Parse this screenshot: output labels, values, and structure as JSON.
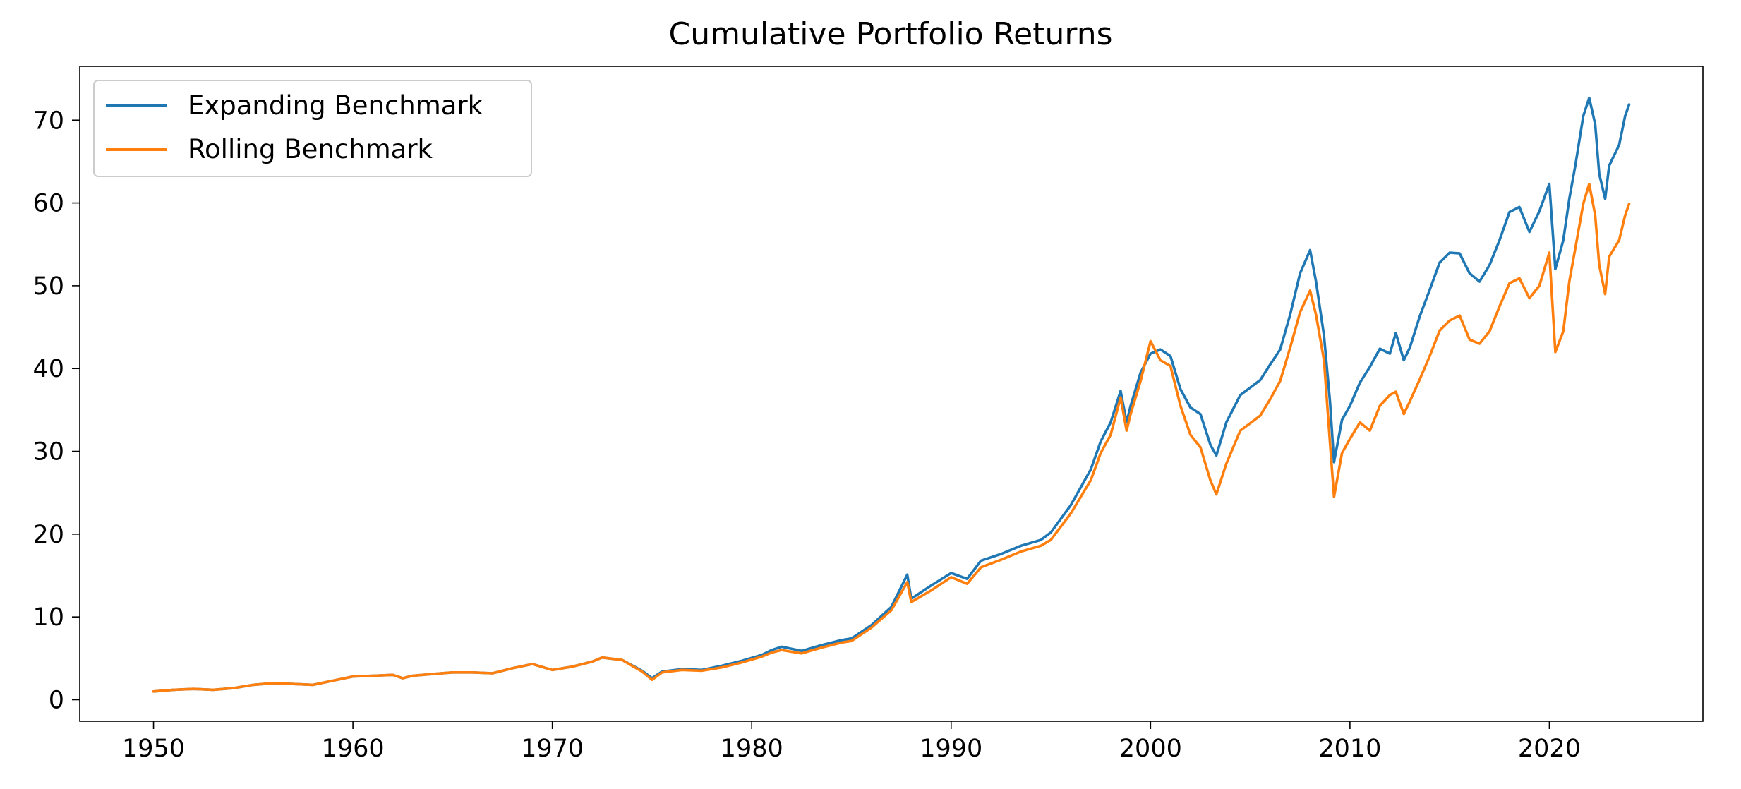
{
  "chart_data": {
    "type": "line",
    "title": "Cumulative Portfolio Returns",
    "xlabel": "",
    "ylabel": "",
    "xlim": [
      1946.3,
      2027.7
    ],
    "ylim": [
      -2.6,
      76.5
    ],
    "x_ticks": [
      1950,
      1960,
      1970,
      1980,
      1990,
      2000,
      2010,
      2020
    ],
    "y_ticks": [
      0,
      10,
      20,
      30,
      40,
      50,
      60,
      70
    ],
    "grid": false,
    "legend_position": "upper-left",
    "series": [
      {
        "name": "Expanding Benchmark",
        "color": "#1f77b4",
        "points": [
          [
            1950.0,
            1.0
          ],
          [
            1951.0,
            1.2
          ],
          [
            1952.0,
            1.3
          ],
          [
            1953.0,
            1.2
          ],
          [
            1954.0,
            1.4
          ],
          [
            1955.0,
            1.8
          ],
          [
            1956.0,
            2.0
          ],
          [
            1957.0,
            1.9
          ],
          [
            1958.0,
            1.8
          ],
          [
            1959.0,
            2.3
          ],
          [
            1960.0,
            2.8
          ],
          [
            1961.0,
            2.9
          ],
          [
            1962.0,
            3.0
          ],
          [
            1962.5,
            2.6
          ],
          [
            1963.0,
            2.9
          ],
          [
            1964.0,
            3.1
          ],
          [
            1965.0,
            3.3
          ],
          [
            1966.0,
            3.3
          ],
          [
            1967.0,
            3.2
          ],
          [
            1968.0,
            3.8
          ],
          [
            1969.0,
            4.3
          ],
          [
            1970.0,
            3.6
          ],
          [
            1971.0,
            4.0
          ],
          [
            1972.0,
            4.6
          ],
          [
            1972.5,
            5.1
          ],
          [
            1973.5,
            4.8
          ],
          [
            1974.5,
            3.5
          ],
          [
            1975.0,
            2.6
          ],
          [
            1975.5,
            3.4
          ],
          [
            1976.5,
            3.7
          ],
          [
            1977.5,
            3.6
          ],
          [
            1978.5,
            4.1
          ],
          [
            1979.5,
            4.7
          ],
          [
            1980.5,
            5.4
          ],
          [
            1981.0,
            6.0
          ],
          [
            1981.5,
            6.4
          ],
          [
            1982.5,
            5.9
          ],
          [
            1983.5,
            6.6
          ],
          [
            1984.5,
            7.2
          ],
          [
            1985.0,
            7.4
          ],
          [
            1986.0,
            9.0
          ],
          [
            1987.0,
            11.2
          ],
          [
            1987.8,
            15.1
          ],
          [
            1988.0,
            12.2
          ],
          [
            1989.0,
            13.8
          ],
          [
            1990.0,
            15.3
          ],
          [
            1990.8,
            14.6
          ],
          [
            1991.5,
            16.8
          ],
          [
            1992.5,
            17.6
          ],
          [
            1993.5,
            18.6
          ],
          [
            1994.5,
            19.3
          ],
          [
            1995.0,
            20.2
          ],
          [
            1996.0,
            23.5
          ],
          [
            1997.0,
            27.8
          ],
          [
            1997.5,
            31.2
          ],
          [
            1998.0,
            33.5
          ],
          [
            1998.5,
            37.3
          ],
          [
            1998.8,
            33.5
          ],
          [
            1999.0,
            35.5
          ],
          [
            1999.5,
            39.5
          ],
          [
            2000.0,
            41.8
          ],
          [
            2000.5,
            42.3
          ],
          [
            2001.0,
            41.5
          ],
          [
            2001.5,
            37.5
          ],
          [
            2002.0,
            35.3
          ],
          [
            2002.5,
            34.5
          ],
          [
            2003.0,
            30.8
          ],
          [
            2003.3,
            29.5
          ],
          [
            2003.8,
            33.5
          ],
          [
            2004.5,
            36.8
          ],
          [
            2005.5,
            38.6
          ],
          [
            2006.0,
            40.5
          ],
          [
            2006.5,
            42.3
          ],
          [
            2007.0,
            46.5
          ],
          [
            2007.5,
            51.5
          ],
          [
            2008.0,
            54.3
          ],
          [
            2008.3,
            50.5
          ],
          [
            2008.7,
            44.0
          ],
          [
            2009.0,
            36.0
          ],
          [
            2009.2,
            28.7
          ],
          [
            2009.6,
            33.8
          ],
          [
            2010.0,
            35.5
          ],
          [
            2010.5,
            38.3
          ],
          [
            2011.0,
            40.2
          ],
          [
            2011.5,
            42.4
          ],
          [
            2012.0,
            41.8
          ],
          [
            2012.3,
            44.3
          ],
          [
            2012.7,
            41.0
          ],
          [
            2013.0,
            42.5
          ],
          [
            2013.5,
            46.3
          ],
          [
            2014.0,
            49.5
          ],
          [
            2014.5,
            52.8
          ],
          [
            2015.0,
            54.0
          ],
          [
            2015.5,
            53.9
          ],
          [
            2016.0,
            51.5
          ],
          [
            2016.5,
            50.5
          ],
          [
            2017.0,
            52.5
          ],
          [
            2017.5,
            55.5
          ],
          [
            2018.0,
            58.9
          ],
          [
            2018.5,
            59.5
          ],
          [
            2019.0,
            56.5
          ],
          [
            2019.5,
            59.0
          ],
          [
            2020.0,
            62.3
          ],
          [
            2020.3,
            52.0
          ],
          [
            2020.7,
            55.5
          ],
          [
            2021.0,
            60.5
          ],
          [
            2021.3,
            64.5
          ],
          [
            2021.7,
            70.5
          ],
          [
            2022.0,
            72.7
          ],
          [
            2022.3,
            69.5
          ],
          [
            2022.5,
            63.5
          ],
          [
            2022.8,
            60.5
          ],
          [
            2023.0,
            64.5
          ],
          [
            2023.5,
            67.0
          ],
          [
            2023.8,
            70.5
          ],
          [
            2024.0,
            71.9
          ]
        ]
      },
      {
        "name": "Rolling Benchmark",
        "color": "#ff7f0e",
        "points": [
          [
            1950.0,
            1.0
          ],
          [
            1951.0,
            1.2
          ],
          [
            1952.0,
            1.3
          ],
          [
            1953.0,
            1.2
          ],
          [
            1954.0,
            1.4
          ],
          [
            1955.0,
            1.8
          ],
          [
            1956.0,
            2.0
          ],
          [
            1957.0,
            1.9
          ],
          [
            1958.0,
            1.8
          ],
          [
            1959.0,
            2.3
          ],
          [
            1960.0,
            2.8
          ],
          [
            1961.0,
            2.9
          ],
          [
            1962.0,
            3.0
          ],
          [
            1962.5,
            2.6
          ],
          [
            1963.0,
            2.9
          ],
          [
            1964.0,
            3.1
          ],
          [
            1965.0,
            3.3
          ],
          [
            1966.0,
            3.3
          ],
          [
            1967.0,
            3.2
          ],
          [
            1968.0,
            3.8
          ],
          [
            1969.0,
            4.3
          ],
          [
            1970.0,
            3.6
          ],
          [
            1971.0,
            4.0
          ],
          [
            1972.0,
            4.6
          ],
          [
            1972.5,
            5.1
          ],
          [
            1973.5,
            4.8
          ],
          [
            1974.5,
            3.4
          ],
          [
            1975.0,
            2.4
          ],
          [
            1975.5,
            3.3
          ],
          [
            1976.5,
            3.6
          ],
          [
            1977.5,
            3.5
          ],
          [
            1978.5,
            3.9
          ],
          [
            1979.5,
            4.5
          ],
          [
            1980.5,
            5.2
          ],
          [
            1981.0,
            5.7
          ],
          [
            1981.5,
            6.0
          ],
          [
            1982.5,
            5.6
          ],
          [
            1983.5,
            6.3
          ],
          [
            1984.5,
            6.9
          ],
          [
            1985.0,
            7.1
          ],
          [
            1986.0,
            8.7
          ],
          [
            1987.0,
            10.8
          ],
          [
            1987.8,
            14.2
          ],
          [
            1988.0,
            11.8
          ],
          [
            1989.0,
            13.2
          ],
          [
            1990.0,
            14.8
          ],
          [
            1990.8,
            14.0
          ],
          [
            1991.5,
            16.0
          ],
          [
            1992.5,
            16.9
          ],
          [
            1993.5,
            17.9
          ],
          [
            1994.5,
            18.6
          ],
          [
            1995.0,
            19.3
          ],
          [
            1996.0,
            22.5
          ],
          [
            1997.0,
            26.5
          ],
          [
            1997.5,
            29.8
          ],
          [
            1998.0,
            32.0
          ],
          [
            1998.5,
            36.5
          ],
          [
            1998.8,
            32.5
          ],
          [
            1999.0,
            34.5
          ],
          [
            1999.5,
            38.5
          ],
          [
            2000.0,
            43.3
          ],
          [
            2000.5,
            41.0
          ],
          [
            2001.0,
            40.3
          ],
          [
            2001.5,
            35.5
          ],
          [
            2002.0,
            32.0
          ],
          [
            2002.5,
            30.5
          ],
          [
            2003.0,
            26.5
          ],
          [
            2003.3,
            24.8
          ],
          [
            2003.8,
            28.5
          ],
          [
            2004.5,
            32.5
          ],
          [
            2005.5,
            34.3
          ],
          [
            2006.0,
            36.3
          ],
          [
            2006.5,
            38.5
          ],
          [
            2007.0,
            42.5
          ],
          [
            2007.5,
            46.8
          ],
          [
            2008.0,
            49.4
          ],
          [
            2008.3,
            46.5
          ],
          [
            2008.7,
            41.0
          ],
          [
            2009.0,
            31.0
          ],
          [
            2009.2,
            24.5
          ],
          [
            2009.6,
            29.8
          ],
          [
            2010.0,
            31.5
          ],
          [
            2010.5,
            33.5
          ],
          [
            2011.0,
            32.5
          ],
          [
            2011.5,
            35.5
          ],
          [
            2012.0,
            36.8
          ],
          [
            2012.3,
            37.2
          ],
          [
            2012.7,
            34.5
          ],
          [
            2013.0,
            36.0
          ],
          [
            2013.5,
            38.7
          ],
          [
            2014.0,
            41.5
          ],
          [
            2014.5,
            44.6
          ],
          [
            2015.0,
            45.8
          ],
          [
            2015.5,
            46.4
          ],
          [
            2016.0,
            43.5
          ],
          [
            2016.5,
            43.0
          ],
          [
            2017.0,
            44.5
          ],
          [
            2017.5,
            47.5
          ],
          [
            2018.0,
            50.3
          ],
          [
            2018.5,
            50.9
          ],
          [
            2019.0,
            48.5
          ],
          [
            2019.5,
            50.0
          ],
          [
            2020.0,
            54.0
          ],
          [
            2020.3,
            42.0
          ],
          [
            2020.7,
            44.5
          ],
          [
            2021.0,
            50.5
          ],
          [
            2021.3,
            54.5
          ],
          [
            2021.7,
            59.9
          ],
          [
            2022.0,
            62.3
          ],
          [
            2022.3,
            58.5
          ],
          [
            2022.5,
            52.5
          ],
          [
            2022.8,
            49.0
          ],
          [
            2023.0,
            53.5
          ],
          [
            2023.5,
            55.5
          ],
          [
            2023.8,
            58.5
          ],
          [
            2024.0,
            59.9
          ]
        ]
      }
    ]
  }
}
